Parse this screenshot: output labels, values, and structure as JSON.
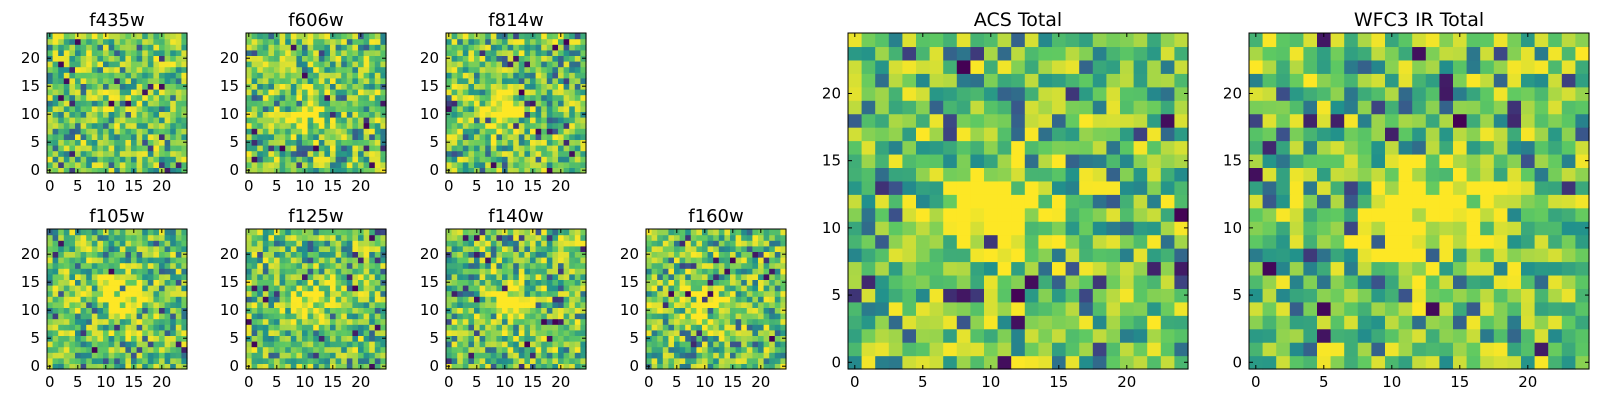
{
  "figure": {
    "colormap": [
      "#440154",
      "#3b528b",
      "#21918c",
      "#5ec962",
      "#fde725"
    ]
  },
  "chart_data": [
    {
      "type": "heatmap",
      "title": "f435w",
      "size": 25,
      "xticks": [
        0,
        5,
        10,
        15,
        20
      ],
      "yticks": [
        0,
        5,
        10,
        15,
        20
      ],
      "grid": false,
      "description": "uniform noise, no visible source",
      "peak": [
        12,
        12
      ],
      "peak_strength": 0.05
    },
    {
      "type": "heatmap",
      "title": "f606w",
      "size": 25,
      "xticks": [
        0,
        5,
        10,
        15,
        20
      ],
      "yticks": [
        0,
        5,
        10,
        15,
        20
      ],
      "grid": false,
      "peak": [
        10,
        11
      ],
      "peak_strength": 0.35
    },
    {
      "type": "heatmap",
      "title": "f814w",
      "size": 25,
      "xticks": [
        0,
        5,
        10,
        15,
        20
      ],
      "yticks": [
        0,
        5,
        10,
        15,
        20
      ],
      "grid": false,
      "peak": [
        10,
        11
      ],
      "peak_strength": 0.4
    },
    {
      "type": "heatmap",
      "title": "f105w",
      "size": 25,
      "xticks": [
        0,
        5,
        10,
        15,
        20
      ],
      "yticks": [
        0,
        5,
        10,
        15,
        20
      ],
      "grid": false,
      "peak": [
        13,
        12
      ],
      "peak_strength": 0.45
    },
    {
      "type": "heatmap",
      "title": "f125w",
      "size": 25,
      "xticks": [
        0,
        5,
        10,
        15,
        20
      ],
      "yticks": [
        0,
        5,
        10,
        15,
        20
      ],
      "grid": false,
      "peak": [
        10,
        12
      ],
      "peak_strength": 0.45
    },
    {
      "type": "heatmap",
      "title": "f140w",
      "size": 25,
      "xticks": [
        0,
        5,
        10,
        15,
        20
      ],
      "yticks": [
        0,
        5,
        10,
        15,
        20
      ],
      "grid": false,
      "peak": [
        11,
        12
      ],
      "peak_strength": 0.4
    },
    {
      "type": "heatmap",
      "title": "f160w",
      "size": 25,
      "xticks": [
        0,
        5,
        10,
        15,
        20
      ],
      "yticks": [
        0,
        5,
        10,
        15,
        20
      ],
      "grid": false,
      "peak": [
        11,
        11
      ],
      "peak_strength": 0.4
    },
    {
      "type": "heatmap",
      "title": "ACS Total",
      "size": 25,
      "xticks": [
        0,
        5,
        10,
        15,
        20
      ],
      "yticks": [
        0,
        5,
        10,
        15,
        20
      ],
      "grid": false,
      "peak": [
        10,
        11
      ],
      "peak_strength": 0.5
    },
    {
      "type": "heatmap",
      "title": "WFC3 IR Total",
      "size": 25,
      "xticks": [
        0,
        5,
        10,
        15,
        20
      ],
      "yticks": [
        0,
        5,
        10,
        15,
        20
      ],
      "grid": false,
      "peak": [
        12,
        11
      ],
      "peak_strength": 0.55
    }
  ]
}
